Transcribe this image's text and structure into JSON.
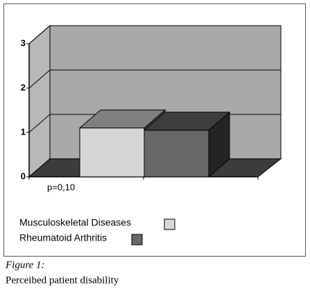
{
  "chart_data": {
    "type": "bar",
    "categories": [
      null
    ],
    "series": [
      {
        "name": "Musculoskeletal Diseases",
        "color": "#d6d6d6",
        "values": [
          1.1
        ]
      },
      {
        "name": "Rheumatoid Arthritis",
        "color": "#686868",
        "values": [
          1.05
        ]
      }
    ],
    "ylim": [
      0,
      3
    ],
    "yticks": [
      0,
      1,
      2,
      3
    ],
    "grid": true,
    "annotation": "p=0,10",
    "caption": {
      "label": "Figure 1:",
      "text": "Perceibed patient disability"
    }
  }
}
